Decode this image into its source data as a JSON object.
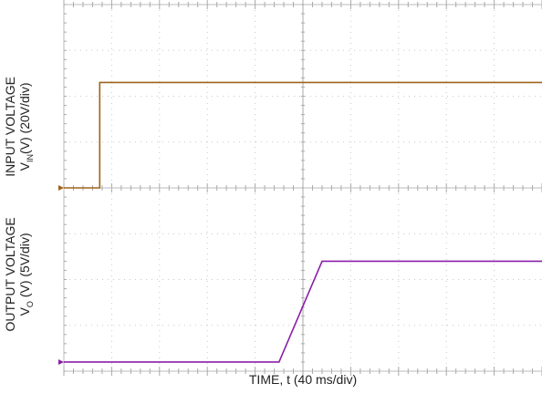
{
  "chart_data": [
    {
      "type": "line",
      "panel": "top",
      "ylabel_line1": "INPUT VOLTAGE",
      "ylabel_line2_base": "V",
      "ylabel_line2_sub": "IN",
      "ylabel_line2_rest": "(V) (20V/div)",
      "xlabel": "",
      "xlim": [
        0,
        10
      ],
      "ylim": [
        0,
        4
      ],
      "x_unit": "div (40 ms/div)",
      "y_unit": "div (20 V/div)",
      "grid": true,
      "series": [
        {
          "color": "#a0621a",
          "x": [
            0,
            0.75,
            0.75,
            10
          ],
          "y": [
            0,
            0,
            2.3,
            2.3
          ]
        }
      ]
    },
    {
      "type": "line",
      "panel": "bottom",
      "ylabel_line1": "OUTPUT VOLTAGE",
      "ylabel_line2_base": "V",
      "ylabel_line2_sub": "O",
      "ylabel_line2_rest": " (V) (5V/div)",
      "xlabel": "TIME, t (40 ms/div)",
      "xlim": [
        0,
        10
      ],
      "ylim": [
        0,
        4
      ],
      "x_unit": "div (40 ms/div)",
      "y_unit": "div (5 V/div)",
      "grid": true,
      "series": [
        {
          "color": "#8a1fa8",
          "x": [
            0,
            4.5,
            5.4,
            10
          ],
          "y": [
            0.2,
            0.2,
            2.4,
            2.4
          ]
        }
      ]
    }
  ]
}
